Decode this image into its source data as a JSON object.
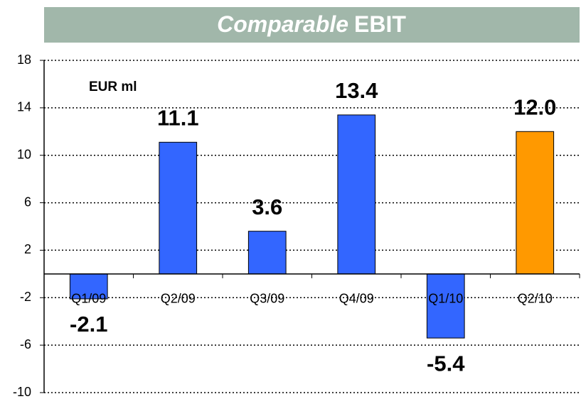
{
  "chart_data": {
    "type": "bar",
    "title_parts": [
      "Comparable",
      "EBIT"
    ],
    "annotation": "EUR ml",
    "categories": [
      "Q1/09",
      "Q2/09",
      "Q3/09",
      "Q4/09",
      "Q1/10",
      "Q2/10"
    ],
    "values": [
      -2.1,
      11.1,
      3.6,
      13.4,
      -5.4,
      12.0
    ],
    "value_labels": [
      "-2.1",
      "11.1",
      "3.6",
      "13.4",
      "-5.4",
      "12.0"
    ],
    "colors": [
      "#3366ff",
      "#3366ff",
      "#3366ff",
      "#3366ff",
      "#3366ff",
      "#ff9900"
    ],
    "ylim": [
      -10,
      18
    ],
    "yticks": [
      -10,
      -6,
      -2,
      2,
      6,
      10,
      14,
      18
    ],
    "grid": true
  }
}
